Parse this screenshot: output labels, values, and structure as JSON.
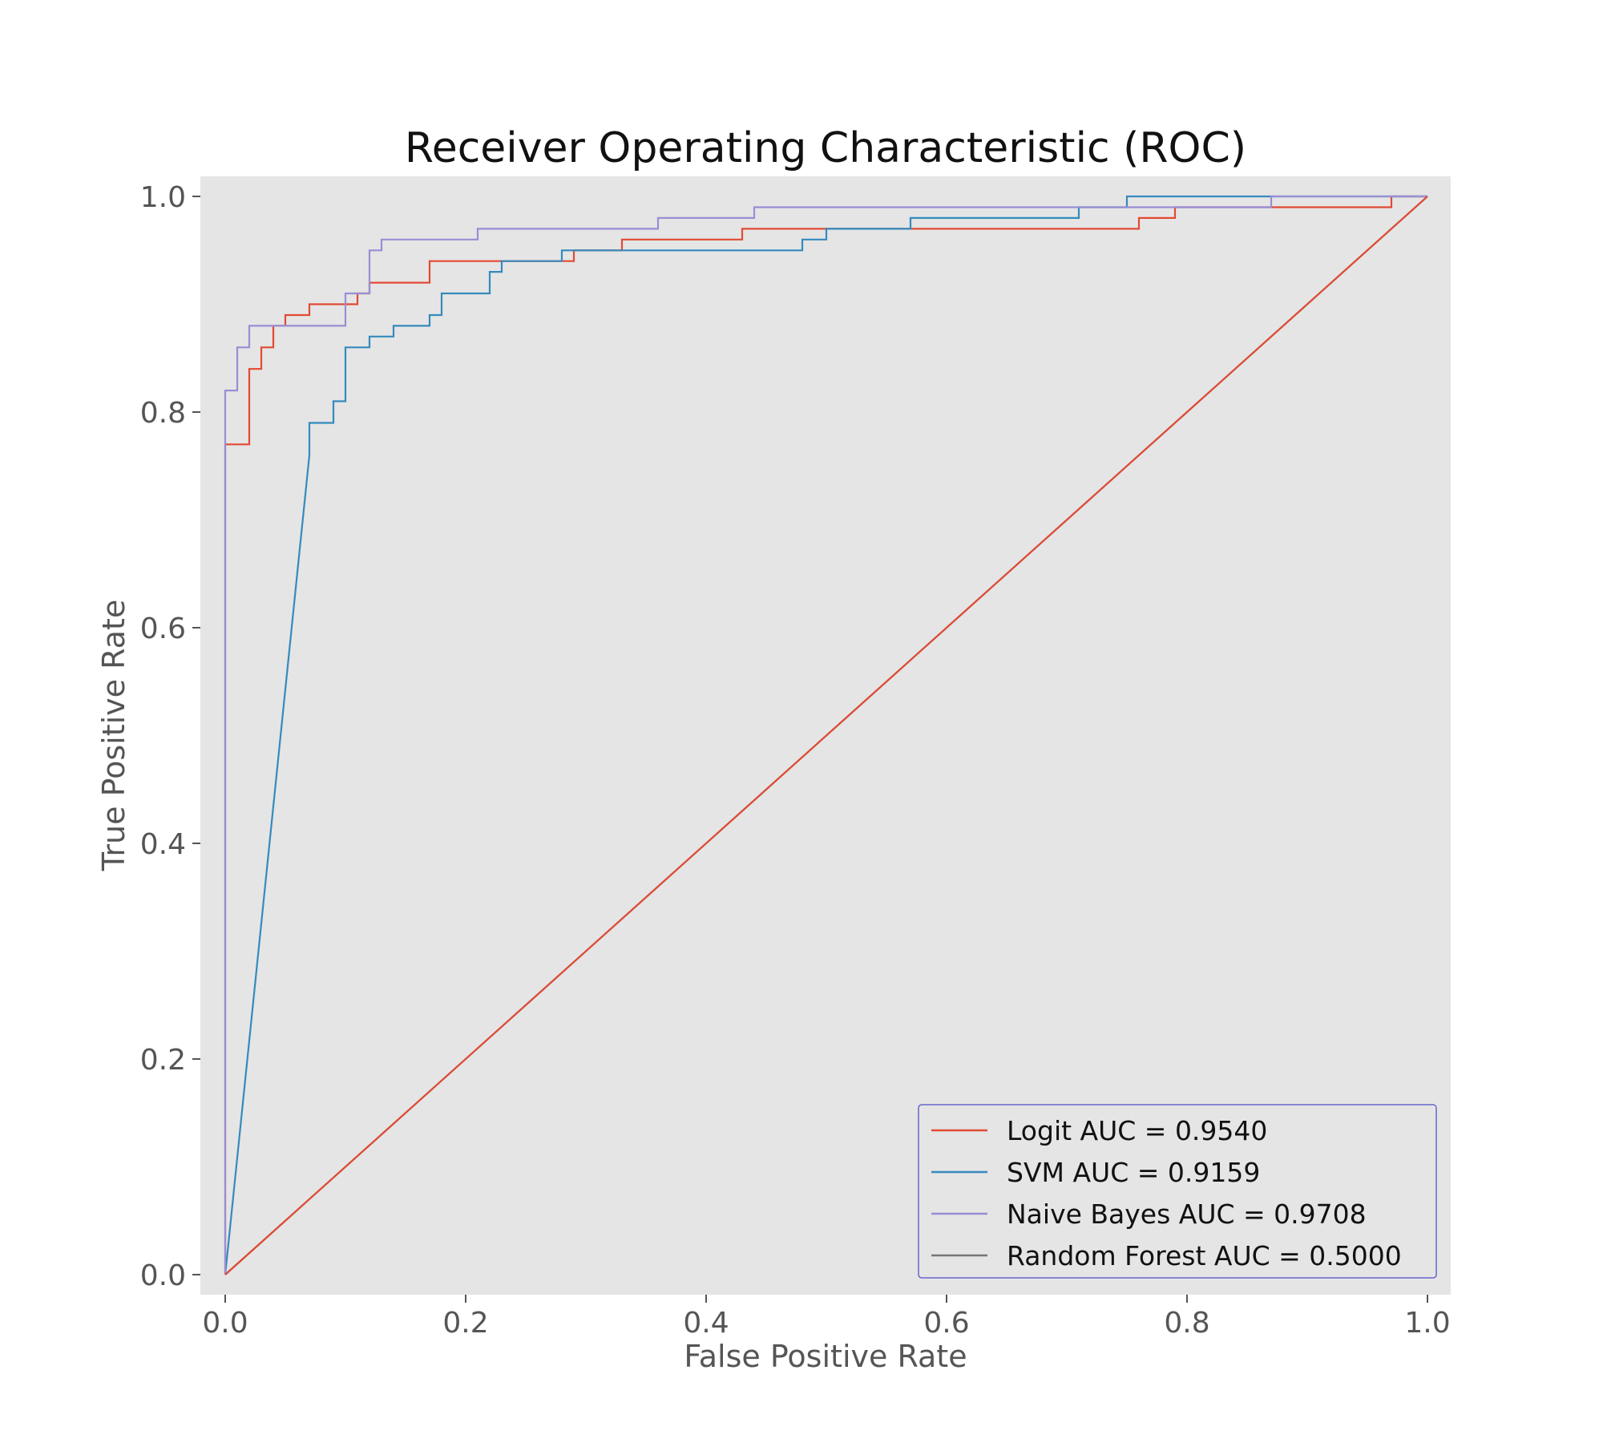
{
  "chart_data": {
    "type": "line",
    "title": "Receiver Operating Characteristic (ROC)",
    "xlabel": "False Positive Rate",
    "ylabel": "True Positive Rate",
    "xlim": [
      0.0,
      1.0
    ],
    "ylim": [
      0.0,
      1.0
    ],
    "xticks": [
      "0.0",
      "0.2",
      "0.4",
      "0.6",
      "0.8",
      "1.0"
    ],
    "yticks": [
      "0.0",
      "0.2",
      "0.4",
      "0.6",
      "0.8",
      "1.0"
    ],
    "grid": false,
    "legend_position": "bottom-right",
    "colors": {
      "plot_background": "#e5e5e5",
      "legend_border": "#6666cc"
    },
    "series": [
      {
        "name": "Logit AUC = 0.9540",
        "color": "#e24a33",
        "points": [
          [
            0,
            0
          ],
          [
            0,
            0.77
          ],
          [
            0.02,
            0.77
          ],
          [
            0.02,
            0.84
          ],
          [
            0.03,
            0.84
          ],
          [
            0.03,
            0.86
          ],
          [
            0.04,
            0.86
          ],
          [
            0.04,
            0.88
          ],
          [
            0.05,
            0.88
          ],
          [
            0.05,
            0.89
          ],
          [
            0.07,
            0.89
          ],
          [
            0.07,
            0.9
          ],
          [
            0.11,
            0.9
          ],
          [
            0.11,
            0.91
          ],
          [
            0.12,
            0.91
          ],
          [
            0.12,
            0.92
          ],
          [
            0.17,
            0.92
          ],
          [
            0.17,
            0.94
          ],
          [
            0.29,
            0.94
          ],
          [
            0.29,
            0.95
          ],
          [
            0.33,
            0.95
          ],
          [
            0.33,
            0.96
          ],
          [
            0.43,
            0.96
          ],
          [
            0.43,
            0.97
          ],
          [
            0.76,
            0.97
          ],
          [
            0.76,
            0.98
          ],
          [
            0.79,
            0.98
          ],
          [
            0.79,
            0.99
          ],
          [
            0.97,
            0.99
          ],
          [
            0.97,
            1.0
          ],
          [
            1.0,
            1.0
          ]
        ]
      },
      {
        "name": "SVM AUC = 0.9159",
        "color": "#348abd",
        "points": [
          [
            0,
            0
          ],
          [
            0.07,
            0.76
          ],
          [
            0.07,
            0.79
          ],
          [
            0.09,
            0.79
          ],
          [
            0.09,
            0.81
          ],
          [
            0.1,
            0.81
          ],
          [
            0.1,
            0.86
          ],
          [
            0.12,
            0.86
          ],
          [
            0.12,
            0.87
          ],
          [
            0.14,
            0.87
          ],
          [
            0.14,
            0.88
          ],
          [
            0.17,
            0.88
          ],
          [
            0.17,
            0.89
          ],
          [
            0.18,
            0.89
          ],
          [
            0.18,
            0.91
          ],
          [
            0.22,
            0.91
          ],
          [
            0.22,
            0.93
          ],
          [
            0.23,
            0.93
          ],
          [
            0.23,
            0.94
          ],
          [
            0.28,
            0.94
          ],
          [
            0.28,
            0.95
          ],
          [
            0.48,
            0.95
          ],
          [
            0.48,
            0.96
          ],
          [
            0.5,
            0.96
          ],
          [
            0.5,
            0.97
          ],
          [
            0.57,
            0.97
          ],
          [
            0.57,
            0.98
          ],
          [
            0.71,
            0.98
          ],
          [
            0.71,
            0.99
          ],
          [
            0.75,
            0.99
          ],
          [
            0.75,
            1.0
          ],
          [
            1.0,
            1.0
          ]
        ]
      },
      {
        "name": "Naive Bayes AUC = 0.9708",
        "color": "#988ed5",
        "points": [
          [
            0,
            0
          ],
          [
            0,
            0.82
          ],
          [
            0.01,
            0.82
          ],
          [
            0.01,
            0.86
          ],
          [
            0.02,
            0.86
          ],
          [
            0.02,
            0.88
          ],
          [
            0.1,
            0.88
          ],
          [
            0.1,
            0.91
          ],
          [
            0.12,
            0.91
          ],
          [
            0.12,
            0.95
          ],
          [
            0.13,
            0.95
          ],
          [
            0.13,
            0.96
          ],
          [
            0.21,
            0.96
          ],
          [
            0.21,
            0.97
          ],
          [
            0.36,
            0.97
          ],
          [
            0.36,
            0.98
          ],
          [
            0.44,
            0.98
          ],
          [
            0.44,
            0.99
          ],
          [
            0.87,
            0.99
          ],
          [
            0.87,
            1.0
          ],
          [
            1.0,
            1.0
          ]
        ]
      },
      {
        "name": "Random Forest AUC = 0.5000",
        "color": "#777777",
        "points": [
          [
            0,
            0
          ],
          [
            1.0,
            1.0
          ]
        ]
      }
    ],
    "reference_line": {
      "color": "#e24a33",
      "points": [
        [
          0,
          0
        ],
        [
          1.0,
          1.0
        ]
      ]
    }
  }
}
